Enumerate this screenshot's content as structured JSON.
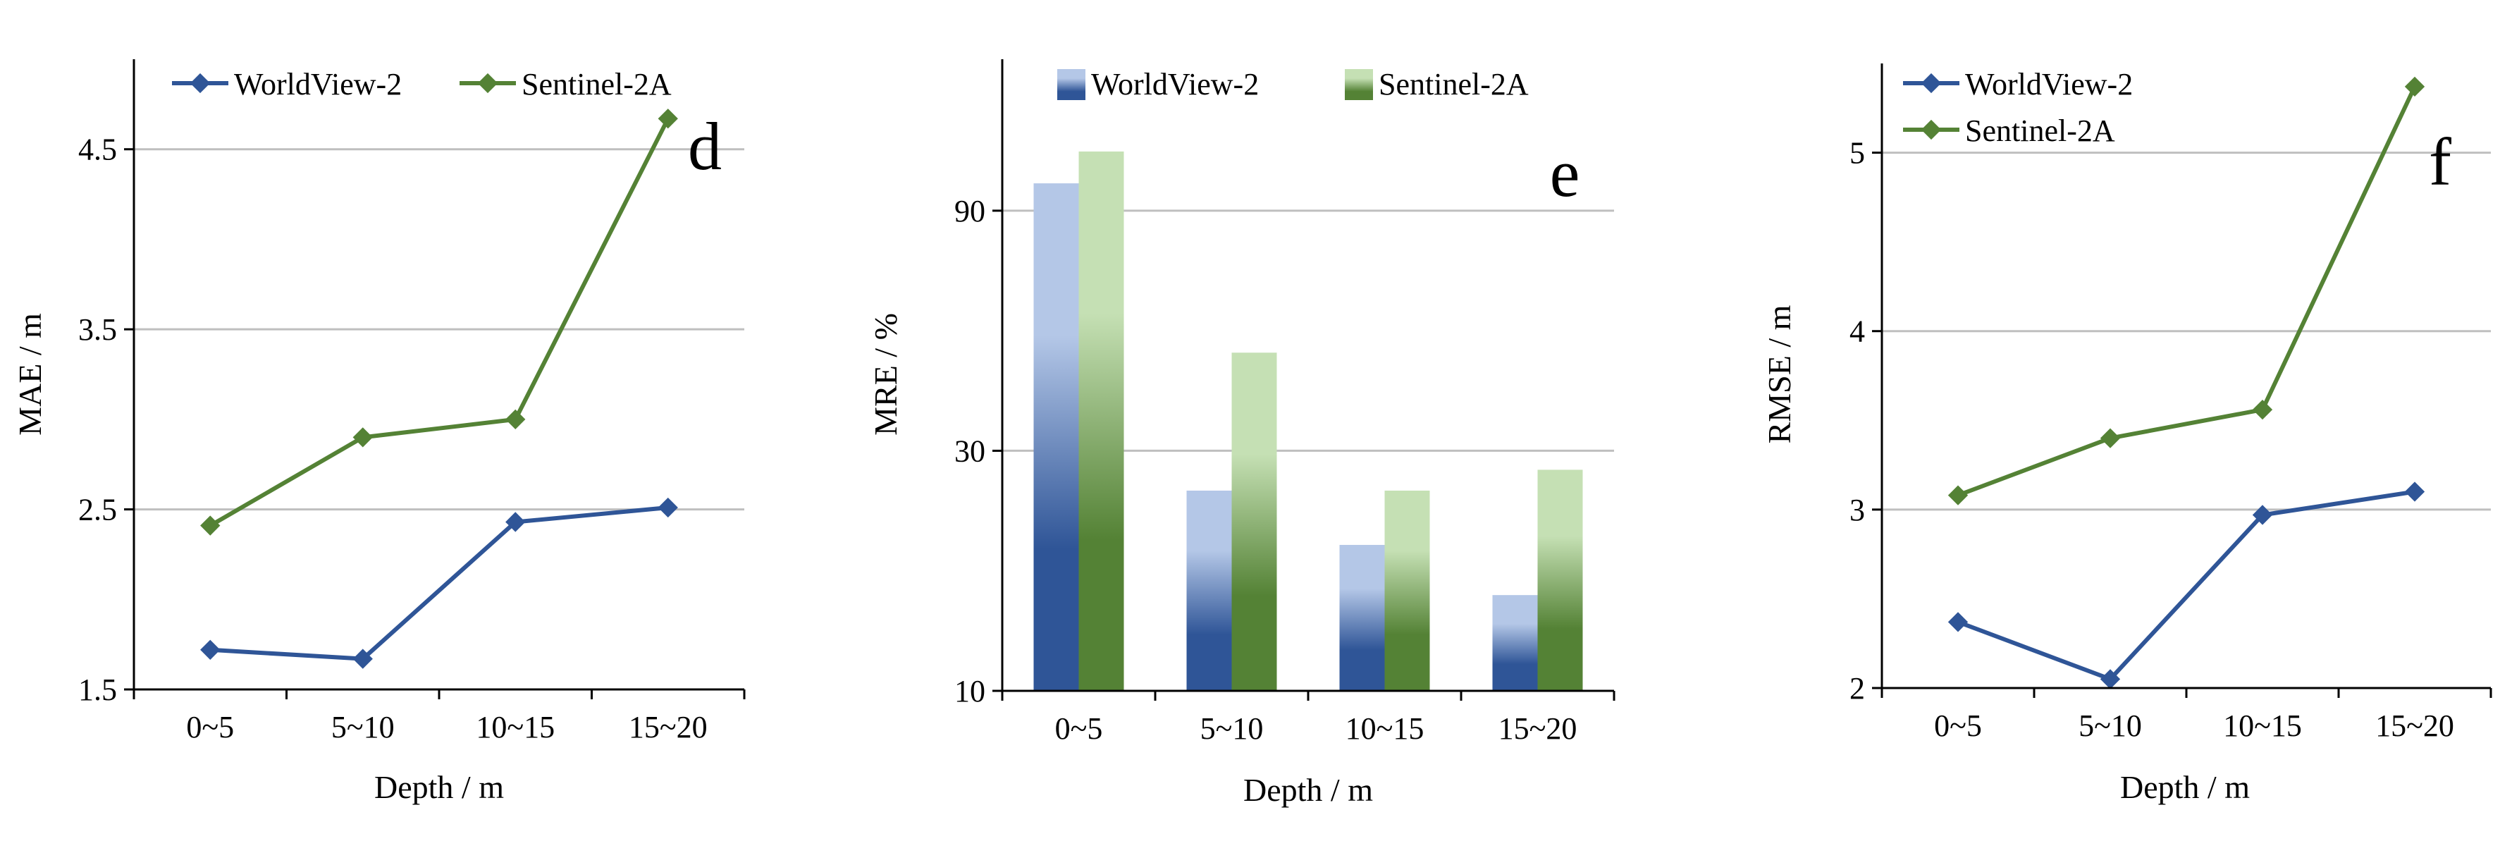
{
  "colors": {
    "worldview": "#2f5597",
    "sentinel": "#548235",
    "grid": "#bfbfbf",
    "axis": "#000000"
  },
  "chart_data": [
    {
      "panel": "d",
      "type": "line",
      "categories": [
        "0~5",
        "5~10",
        "10~15",
        "15~20"
      ],
      "series": [
        {
          "name": "WorldView-2",
          "values": [
            1.72,
            1.67,
            2.43,
            2.51
          ]
        },
        {
          "name": "Sentinel-2A",
          "values": [
            2.41,
            2.9,
            3.0,
            4.67
          ]
        }
      ],
      "xlabel": "Depth / m",
      "ylabel": "MAE / m",
      "ylim": [
        1.5,
        5.0
      ],
      "yticks": [
        1.5,
        2.5,
        3.5,
        4.5
      ],
      "ytick_labels": [
        "1.5",
        "2.5",
        "3.5",
        "4.5"
      ],
      "grid": true,
      "legend": "top"
    },
    {
      "panel": "e",
      "type": "bar",
      "scale": "log",
      "categories": [
        "0~5",
        "5~10",
        "10~15",
        "15~20"
      ],
      "series": [
        {
          "name": "WorldView-2",
          "values": [
            102,
            25,
            19.5,
            15.5
          ]
        },
        {
          "name": "Sentinel-2A",
          "values": [
            118,
            47,
            25,
            27.5
          ]
        }
      ],
      "xlabel": "Depth / m",
      "ylabel": "MRE / %",
      "ylim": [
        10,
        180
      ],
      "yticks": [
        10,
        30,
        90
      ],
      "ytick_labels": [
        "10",
        "30",
        "90"
      ],
      "grid": true,
      "legend": "top"
    },
    {
      "panel": "f",
      "type": "line",
      "categories": [
        "0~5",
        "5~10",
        "10~15",
        "15~20"
      ],
      "series": [
        {
          "name": "WorldView-2",
          "values": [
            2.37,
            2.05,
            2.97,
            3.1
          ]
        },
        {
          "name": "Sentinel-2A",
          "values": [
            3.08,
            3.4,
            3.56,
            5.37
          ]
        }
      ],
      "xlabel": "Depth / m",
      "ylabel": "RMSE / m",
      "ylim": [
        2,
        5.5
      ],
      "yticks": [
        2,
        3,
        4,
        5
      ],
      "ytick_labels": [
        "2",
        "3",
        "4",
        "5"
      ],
      "grid": true,
      "legend": "top-left"
    }
  ]
}
